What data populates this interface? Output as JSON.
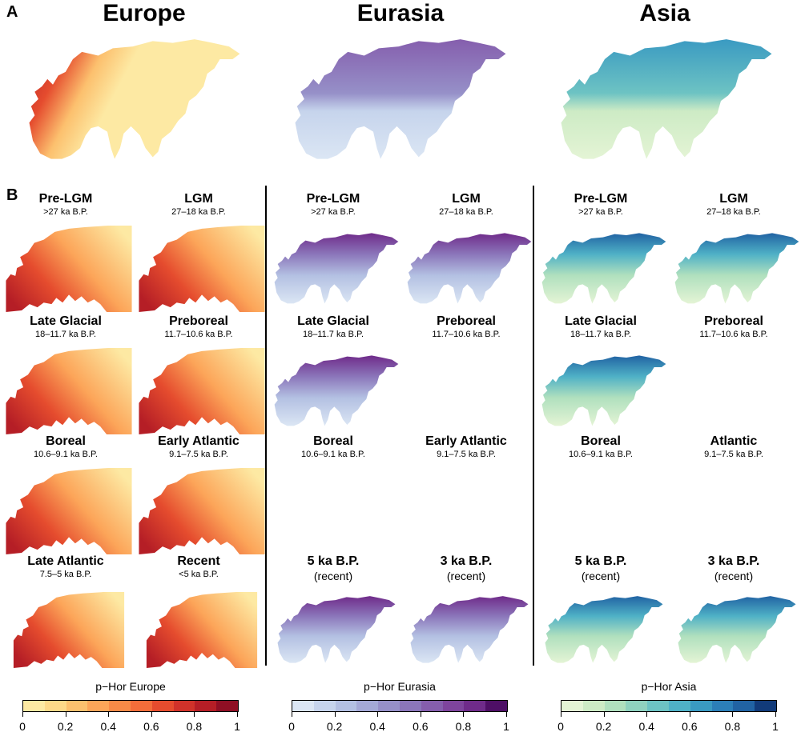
{
  "panel_a": {
    "letter": "A",
    "titles": [
      "Europe",
      "Eurasia",
      "Asia"
    ]
  },
  "panel_b": {
    "letter": "B",
    "europe": [
      {
        "name": "Pre-LGM",
        "dates": ">27 ka B.P."
      },
      {
        "name": "LGM",
        "dates": "27–18 ka B.P."
      },
      {
        "name": "Late Glacial",
        "dates": "18–11.7 ka B.P."
      },
      {
        "name": "Preboreal",
        "dates": "11.7–10.6 ka B.P."
      },
      {
        "name": "Boreal",
        "dates": "10.6–9.1 ka B.P."
      },
      {
        "name": "Early Atlantic",
        "dates": "9.1–7.5 ka B.P."
      },
      {
        "name": "Late Atlantic",
        "dates": "7.5–5 ka B.P."
      },
      {
        "name": "Recent",
        "dates": "<5 ka B.P."
      }
    ],
    "eurasia": [
      {
        "name": "Pre-LGM",
        "dates": ">27 ka B.P."
      },
      {
        "name": "LGM",
        "dates": "27–18 ka B.P."
      },
      {
        "name": "Late Glacial",
        "dates": "18–11.7 ka B.P."
      },
      {
        "name": "Preboreal",
        "dates": "11.7–10.6 ka B.P."
      },
      {
        "name": "Boreal",
        "dates": "10.6–9.1 ka B.P."
      },
      {
        "name": "Early Atlantic",
        "dates": "9.1–7.5 ka B.P."
      },
      {
        "name": "5 ka B.P.",
        "dates": "(recent)"
      },
      {
        "name": "3 ka B.P.",
        "dates": "(recent)"
      }
    ],
    "asia": [
      {
        "name": "Pre-LGM",
        "dates": ">27 ka B.P."
      },
      {
        "name": "LGM",
        "dates": "27–18 ka B.P."
      },
      {
        "name": "Late Glacial",
        "dates": "18–11.7 ka B.P."
      },
      {
        "name": "Preboreal",
        "dates": "11.7–10.6 ka B.P."
      },
      {
        "name": "Boreal",
        "dates": "10.6–9.1 ka B.P."
      },
      {
        "name": "Atlantic",
        "dates": "9.1–7.5 ka B.P."
      },
      {
        "name": "5 ka B.P.",
        "dates": "(recent)"
      },
      {
        "name": "3 ka B.P.",
        "dates": "(recent)"
      }
    ]
  },
  "legends": [
    {
      "title": "p−Hor Europe",
      "colors": [
        "#fde9a3",
        "#fdd888",
        "#fcc06e",
        "#fca559",
        "#f88a47",
        "#f36d3a",
        "#e54c2e",
        "#d0322a",
        "#b51e26",
        "#8f0f24"
      ],
      "ticks": [
        "0",
        "0.2",
        "0.4",
        "0.6",
        "0.8",
        "1"
      ]
    },
    {
      "title": "p−Hor Eurasia",
      "colors": [
        "#dbe6f4",
        "#c6d4ec",
        "#b3c0e2",
        "#a4a9d6",
        "#9690c8",
        "#8b76ba",
        "#855ead",
        "#7e449d",
        "#6f2b8a",
        "#4e0f66"
      ],
      "ticks": [
        "0",
        "0.2",
        "0.4",
        "0.6",
        "0.8",
        "1"
      ]
    },
    {
      "title": "p−Hor Asia",
      "colors": [
        "#e4f4d5",
        "#cdebc5",
        "#b0e0be",
        "#8fd2bf",
        "#6dc3c3",
        "#4fb1c6",
        "#3a9ac2",
        "#2c7fb8",
        "#2163a3",
        "#123b7a"
      ],
      "ticks": [
        "0",
        "0.2",
        "0.4",
        "0.6",
        "0.8",
        "1"
      ]
    }
  ]
}
